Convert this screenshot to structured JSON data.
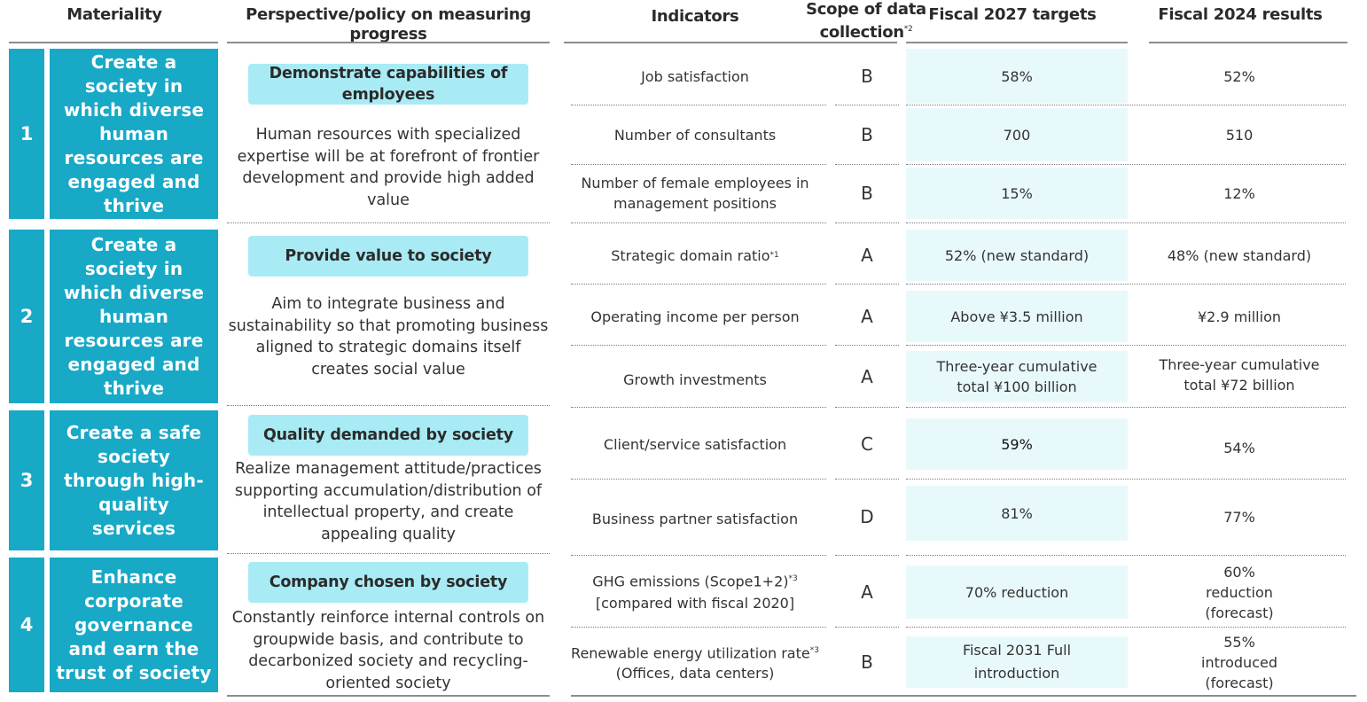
{
  "headers": {
    "materiality": "Materiality",
    "perspective": "Perspective/policy on measuring progress",
    "indicators": "Indicators",
    "scope": "Scope of data collection",
    "scope_note": "*2",
    "targets": "Fiscal 2027 targets",
    "results": "Fiscal 2024 results"
  },
  "groups": [
    {
      "number": "1",
      "materiality": "Create a society in which diverse human resources are engaged and thrive",
      "perspective_title": "Demonstrate capabilities of employees",
      "perspective_text": "Human resources with specialized expertise will be at forefront of frontier development and provide high added value",
      "rows": [
        {
          "indicator": "Job satisfaction",
          "note": "",
          "scope": "B",
          "target": "58%",
          "result": "52%"
        },
        {
          "indicator": "Number of consultants",
          "note": "",
          "scope": "B",
          "target": "700",
          "result": "510"
        },
        {
          "indicator": "Number of female employees in management positions",
          "note": "",
          "scope": "B",
          "target": "15%",
          "result": "12%"
        }
      ]
    },
    {
      "number": "2",
      "materiality": "Create a society in which diverse human resources are engaged and thrive",
      "perspective_title": "Provide value to society",
      "perspective_text": "Aim to integrate business and sustainability so that promoting business aligned to strategic domains itself creates social value",
      "rows": [
        {
          "indicator": "Strategic domain ratio",
          "note": "*1",
          "scope": "A",
          "target": "52% (new standard)",
          "result": "48% (new standard)"
        },
        {
          "indicator": "Operating income per person",
          "note": "",
          "scope": "A",
          "target": "Above ¥3.5 million",
          "result": "¥2.9 million"
        },
        {
          "indicator": "Growth investments",
          "note": "",
          "scope": "A",
          "target": "Three-year cumulative total ¥100 billion",
          "result": "Three-year cumulative total ¥72 billion"
        }
      ]
    },
    {
      "number": "3",
      "materiality": "Create a safe society through high-quality services",
      "perspective_title": "Quality demanded by society",
      "perspective_text": "Realize management attitude/practices supporting accumulation/distribution of intellectual property, and create appealing quality",
      "rows": [
        {
          "indicator": "Client/service satisfaction",
          "note": "",
          "scope": "C",
          "target": "59%",
          "result": "54%"
        },
        {
          "indicator": "Business partner satisfaction",
          "note": "",
          "scope": "D",
          "target": "81%",
          "result": "77%"
        }
      ]
    },
    {
      "number": "4",
      "materiality": "Enhance corporate governance and earn the trust of society",
      "perspective_title": "Company chosen by society",
      "perspective_text": "Constantly reinforce internal controls on groupwide basis, and contribute to decarbonized society and recycling-oriented society",
      "rows": [
        {
          "indicator": "GHG emissions (Scope1+2)",
          "note": "*3",
          "indicator_sub": "[compared with fiscal 2020]",
          "scope": "A",
          "target": "70% reduction",
          "result": "60% reduction (forecast)"
        },
        {
          "indicator": "Renewable energy utilization rate",
          "note": "*3",
          "indicator_sub": "(Offices, data centers)",
          "scope": "B",
          "target": "Fiscal 2031 Full introduction",
          "result": "55% introduced (forecast)"
        }
      ]
    }
  ],
  "colors": {
    "materiality_bg": "#17a9c6",
    "pill_bg": "#a9ebf5",
    "target_bg": "#e8f9fc"
  }
}
